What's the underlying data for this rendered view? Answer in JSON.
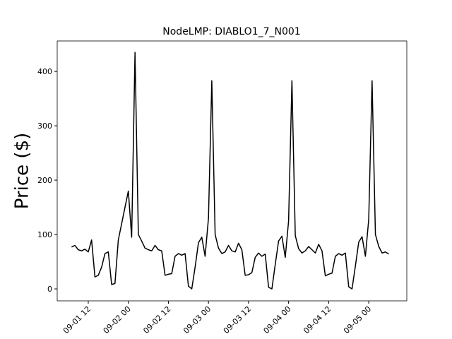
{
  "chart_data": {
    "type": "line",
    "title": "NodeLMP: DIABLO1_7_N001",
    "y_label": "Price ($)",
    "x": [
      7,
      8,
      9,
      10,
      11,
      12,
      13,
      14,
      15,
      16,
      17,
      18,
      19,
      20,
      21,
      22,
      23,
      24,
      25,
      26,
      27,
      28,
      29,
      30,
      31,
      32,
      33,
      34,
      35,
      36,
      37,
      38,
      39,
      40,
      41,
      42,
      43,
      44,
      45,
      46,
      47,
      48,
      49,
      50,
      51,
      52,
      53,
      54,
      55,
      56,
      57,
      58,
      59,
      60,
      61,
      62,
      63,
      64,
      65,
      66,
      67,
      68,
      69,
      70,
      71,
      72,
      73,
      74,
      75,
      76,
      77,
      78,
      79,
      80,
      81,
      82,
      83,
      84,
      85,
      86,
      87,
      88,
      89,
      90,
      91,
      92,
      93,
      94,
      95,
      96,
      97,
      98,
      99,
      100,
      101,
      102
    ],
    "series": [
      {
        "name": "DIABLO1_7_N001",
        "color": "#000000",
        "values": [
          77,
          80,
          72,
          70,
          73,
          68,
          90,
          22,
          25,
          40,
          65,
          68,
          8,
          10,
          90,
          120,
          150,
          180,
          95,
          435,
          100,
          88,
          75,
          72,
          70,
          80,
          72,
          70,
          25,
          27,
          28,
          60,
          65,
          62,
          65,
          5,
          0,
          40,
          85,
          95,
          60,
          130,
          383,
          100,
          75,
          65,
          68,
          80,
          70,
          68,
          84,
          72,
          25,
          26,
          30,
          58,
          66,
          60,
          64,
          3,
          0,
          45,
          88,
          97,
          58,
          125,
          383,
          98,
          74,
          66,
          70,
          78,
          72,
          66,
          82,
          70,
          24,
          27,
          29,
          60,
          65,
          62,
          66,
          4,
          0,
          42,
          86,
          96,
          60,
          128,
          383,
          100,
          78,
          66,
          68,
          64
        ]
      }
    ],
    "xlim": [
      2.7,
      107.4
    ],
    "ylim": [
      -22,
      456
    ],
    "xticks": [
      {
        "value": 12,
        "label": "09-01 12"
      },
      {
        "value": 24,
        "label": "09-02 00"
      },
      {
        "value": 36,
        "label": "09-02 12"
      },
      {
        "value": 48,
        "label": "09-03 00"
      },
      {
        "value": 60,
        "label": "09-03 12"
      },
      {
        "value": 72,
        "label": "09-04 00"
      },
      {
        "value": 84,
        "label": "09-04 12"
      },
      {
        "value": 96,
        "label": "09-05 00"
      }
    ],
    "yticks": [
      0,
      100,
      200,
      300,
      400
    ],
    "grid": false
  }
}
